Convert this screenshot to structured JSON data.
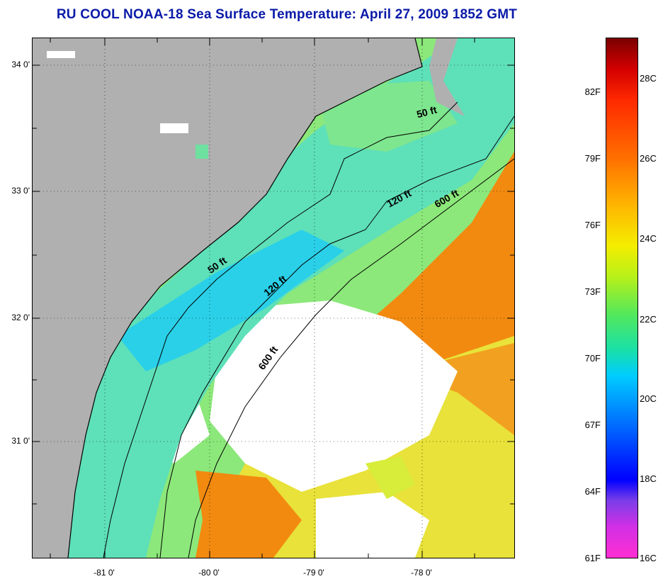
{
  "title": "RU COOL  NOAA-18  Sea Surface Temperature:  April 27, 2009 1852 GMT",
  "lat_labels": [
    "34 0'",
    "33 0'",
    "32 0'",
    "31 0'"
  ],
  "lon_labels": [
    "-81 0'",
    "-80 0'",
    "-79 0'",
    "-78 0'"
  ],
  "depth_contours": {
    "c50_north": "50 ft",
    "c120_north": "120 ft",
    "c600_north": "600 ft",
    "c50_mid": "50 ft",
    "c120_mid": "120 ft",
    "c600_south": "600 ft"
  },
  "colorbar": {
    "fahrenheit": [
      "82F",
      "79F",
      "76F",
      "73F",
      "70F",
      "67F",
      "64F",
      "61F"
    ],
    "celsius": [
      "28C",
      "26C",
      "24C",
      "22C",
      "20C",
      "18C",
      "16C"
    ]
  },
  "colors": {
    "title": "#0a1aa8",
    "land": "#b0b0b0",
    "cloud": "#ffffff",
    "shelf_water": "#5ee0b8",
    "gulf_stream": "#f28a10"
  }
}
